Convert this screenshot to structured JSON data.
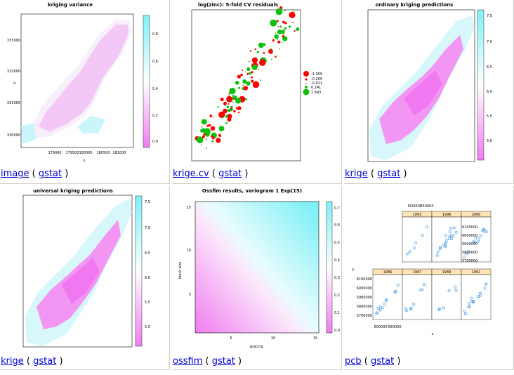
{
  "cells": [
    {
      "title": "kriging variance",
      "ylabel": "y",
      "xlabel": "x",
      "yticks": [
        "333000",
        "332000",
        "331000",
        "330000"
      ],
      "xticks": [
        "179000",
        "179500",
        "180000",
        "180500",
        "181000"
      ],
      "colorbar_ticks": [
        "0.8",
        "0.6",
        "0.4",
        "0.2",
        "0.0"
      ],
      "link": "image",
      "pkg": "gstat"
    },
    {
      "title": "log(zinc): 5-fold CV residuals",
      "legend": [
        "-1.059",
        "-0.205",
        "-0.011",
        "0.241",
        "1.643"
      ],
      "link": "krige.cv",
      "pkg": "gstat"
    },
    {
      "title": "ordinary kriging predictions",
      "colorbar_ticks": [
        "7.5",
        "7.0",
        "6.5",
        "6.0",
        "5.5",
        "5.0"
      ],
      "link": "krige",
      "pkg": "gstat"
    },
    {
      "title": "universal kriging predictions",
      "colorbar_ticks": [
        "7.5",
        "7.0",
        "6.5",
        "6.0",
        "5.5",
        "5.0"
      ],
      "link": "krige",
      "pkg": "gstat"
    },
    {
      "title": "Ossfim results, variogram 1 Exp(15)",
      "ylabel": "block size",
      "xlabel": "spacing",
      "yticks": [
        "15",
        "10",
        "5"
      ],
      "xticks": [
        "5",
        "10",
        "15"
      ],
      "colorbar_ticks": [
        "0.7",
        "0.6",
        "0.5",
        "0.4",
        "0.3",
        "0.2",
        "0.1",
        "0.0"
      ],
      "link": "ossfim",
      "pkg": "gstat"
    },
    {
      "panels_top": [
        "1993",
        "1996",
        "2000"
      ],
      "panels_bottom": [
        "1986",
        "1987",
        "1989",
        "1991"
      ],
      "top_xticks": [
        "500000",
        "650000"
      ],
      "right_yticks": [
        "6100000",
        "6000000",
        "5900000",
        "5800000",
        "5700000"
      ],
      "left_yticks": [
        "6100000",
        "6000000",
        "5900000",
        "5800000",
        "5700000"
      ],
      "bottom_xticks": [
        "500000",
        "650000"
      ],
      "ylabel": "y",
      "xlabel": "x",
      "link": "pcb",
      "pkg": "gstat"
    }
  ],
  "separators": [
    "(",
    ")"
  ],
  "colors": {
    "link": "#0000cc",
    "magenta": "#f07cf0",
    "cyan": "#7ef0f6",
    "red": "#ff0000",
    "green": "#10c010",
    "blue_pt": "#4f9fe6"
  }
}
